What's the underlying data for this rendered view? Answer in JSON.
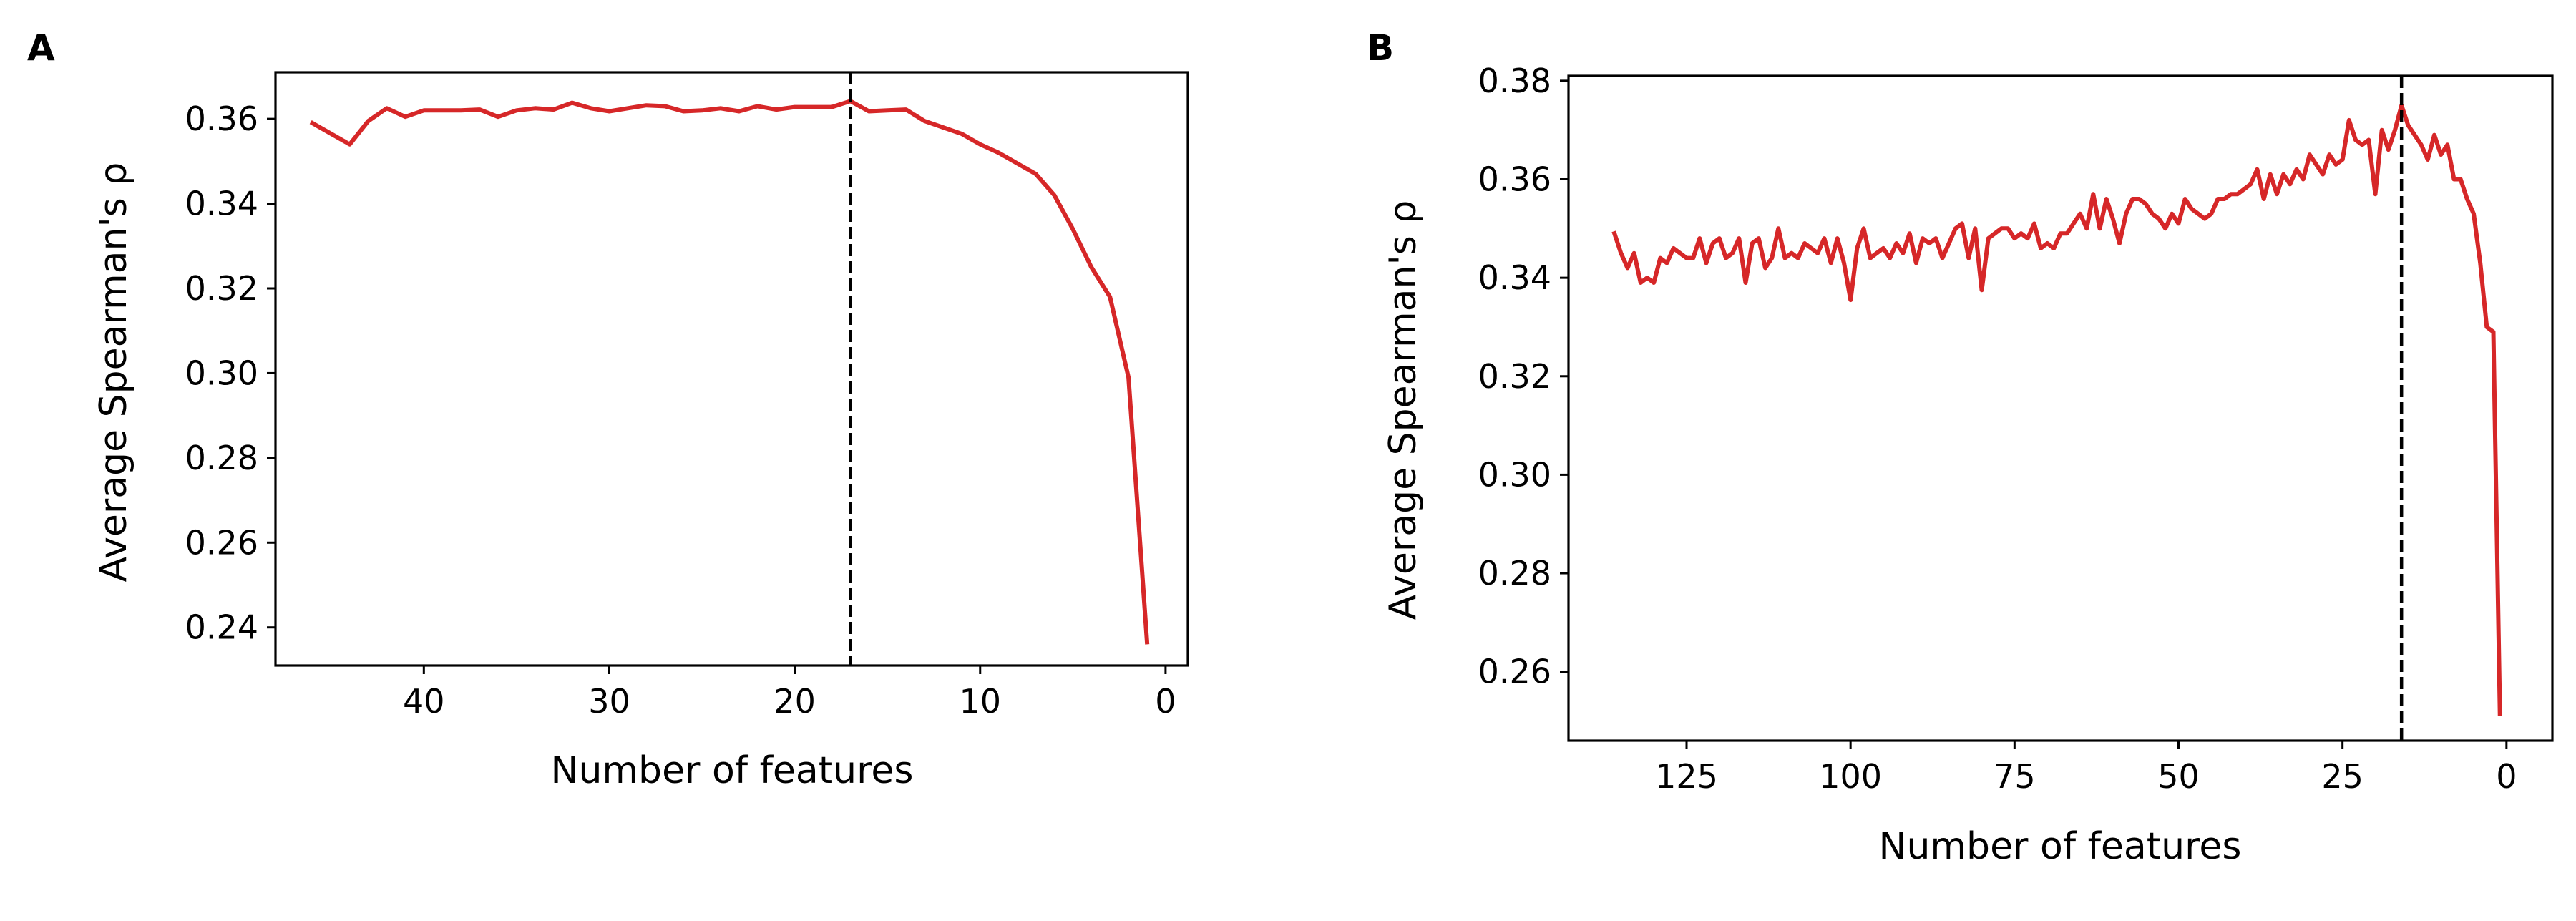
{
  "chart_data": [
    {
      "panel": "A",
      "type": "line",
      "xlabel": "Number of features",
      "ylabel": "Average Spearman's ρ",
      "xlim": [
        48,
        -1.2
      ],
      "ylim": [
        0.231,
        0.371
      ],
      "xticks": [
        40,
        30,
        20,
        10,
        0
      ],
      "xtick_labels": [
        "40",
        "30",
        "20",
        "10",
        "0"
      ],
      "yticks": [
        0.24,
        0.26,
        0.28,
        0.3,
        0.32,
        0.34,
        0.36
      ],
      "ytick_labels": [
        "0.24",
        "0.26",
        "0.28",
        "0.30",
        "0.32",
        "0.34",
        "0.36"
      ],
      "vline_x": 17,
      "line_color": "#d62728",
      "vline_color": "#000000",
      "series": [
        {
          "x": [
            46,
            45,
            44,
            43,
            42,
            41,
            40,
            39,
            38,
            37,
            36,
            35,
            34,
            33,
            32,
            31,
            30,
            29,
            28,
            27,
            26,
            25,
            24,
            23,
            22,
            21,
            20,
            19,
            18,
            17,
            16,
            15,
            14,
            13,
            12,
            11,
            10,
            9,
            8,
            7,
            6,
            5,
            4,
            3,
            2,
            1
          ],
          "y": [
            0.359,
            0.3565,
            0.354,
            0.3595,
            0.3625,
            0.3605,
            0.362,
            0.362,
            0.362,
            0.3622,
            0.3605,
            0.362,
            0.3625,
            0.3622,
            0.3638,
            0.3625,
            0.3618,
            0.3625,
            0.3632,
            0.363,
            0.3618,
            0.362,
            0.3625,
            0.3618,
            0.363,
            0.3622,
            0.3628,
            0.3628,
            0.3628,
            0.3642,
            0.3618,
            0.362,
            0.3622,
            0.3595,
            0.358,
            0.3565,
            0.354,
            0.352,
            0.3495,
            0.347,
            0.342,
            0.334,
            0.325,
            0.318,
            0.299,
            0.2365
          ]
        }
      ]
    },
    {
      "panel": "B",
      "type": "line",
      "xlabel": "Number of features",
      "ylabel": "Average Spearman's ρ",
      "xlim": [
        143,
        -7
      ],
      "ylim": [
        0.246,
        0.381
      ],
      "xticks": [
        125,
        100,
        75,
        50,
        25,
        0
      ],
      "xtick_labels": [
        "125",
        "100",
        "75",
        "50",
        "25",
        "0"
      ],
      "yticks": [
        0.26,
        0.28,
        0.3,
        0.32,
        0.34,
        0.36,
        0.38
      ],
      "ytick_labels": [
        "0.26",
        "0.28",
        "0.30",
        "0.32",
        "0.34",
        "0.36",
        "0.38"
      ],
      "vline_x": 16,
      "line_color": "#d62728",
      "vline_color": "#000000",
      "series": [
        {
          "x": [
            136,
            135,
            134,
            133,
            132,
            131,
            130,
            129,
            128,
            127,
            126,
            125,
            124,
            123,
            122,
            121,
            120,
            119,
            118,
            117,
            116,
            115,
            114,
            113,
            112,
            111,
            110,
            109,
            108,
            107,
            106,
            105,
            104,
            103,
            102,
            101,
            100,
            99,
            98,
            97,
            96,
            95,
            94,
            93,
            92,
            91,
            90,
            89,
            88,
            87,
            86,
            85,
            84,
            83,
            82,
            81,
            80,
            79,
            78,
            77,
            76,
            75,
            74,
            73,
            72,
            71,
            70,
            69,
            68,
            67,
            66,
            65,
            64,
            63,
            62,
            61,
            60,
            59,
            58,
            57,
            56,
            55,
            54,
            53,
            52,
            51,
            50,
            49,
            48,
            47,
            46,
            45,
            44,
            43,
            42,
            41,
            40,
            39,
            38,
            37,
            36,
            35,
            34,
            33,
            32,
            31,
            30,
            29,
            28,
            27,
            26,
            25,
            24,
            23,
            22,
            21,
            20,
            19,
            18,
            17,
            16,
            15,
            14,
            13,
            12,
            11,
            10,
            9,
            8,
            7,
            6,
            5,
            4,
            3,
            2,
            1
          ],
          "y": [
            0.349,
            0.345,
            0.342,
            0.345,
            0.339,
            0.34,
            0.339,
            0.344,
            0.343,
            0.346,
            0.345,
            0.344,
            0.344,
            0.348,
            0.343,
            0.347,
            0.348,
            0.344,
            0.345,
            0.348,
            0.339,
            0.347,
            0.348,
            0.342,
            0.344,
            0.35,
            0.344,
            0.345,
            0.344,
            0.347,
            0.346,
            0.345,
            0.348,
            0.343,
            0.348,
            0.343,
            0.3355,
            0.346,
            0.35,
            0.344,
            0.345,
            0.346,
            0.344,
            0.347,
            0.345,
            0.349,
            0.343,
            0.348,
            0.347,
            0.348,
            0.344,
            0.347,
            0.35,
            0.351,
            0.344,
            0.35,
            0.3375,
            0.348,
            0.349,
            0.35,
            0.35,
            0.348,
            0.349,
            0.348,
            0.351,
            0.346,
            0.347,
            0.346,
            0.349,
            0.349,
            0.351,
            0.353,
            0.35,
            0.357,
            0.35,
            0.356,
            0.352,
            0.347,
            0.353,
            0.356,
            0.356,
            0.355,
            0.353,
            0.352,
            0.35,
            0.353,
            0.351,
            0.356,
            0.354,
            0.353,
            0.352,
            0.353,
            0.356,
            0.356,
            0.357,
            0.357,
            0.358,
            0.359,
            0.362,
            0.356,
            0.361,
            0.357,
            0.361,
            0.359,
            0.362,
            0.36,
            0.365,
            0.363,
            0.361,
            0.365,
            0.363,
            0.364,
            0.372,
            0.368,
            0.367,
            0.368,
            0.357,
            0.37,
            0.366,
            0.37,
            0.375,
            0.371,
            0.369,
            0.367,
            0.364,
            0.369,
            0.365,
            0.367,
            0.36,
            0.36,
            0.356,
            0.353,
            0.343,
            0.33,
            0.329,
            0.2515
          ]
        }
      ]
    }
  ]
}
